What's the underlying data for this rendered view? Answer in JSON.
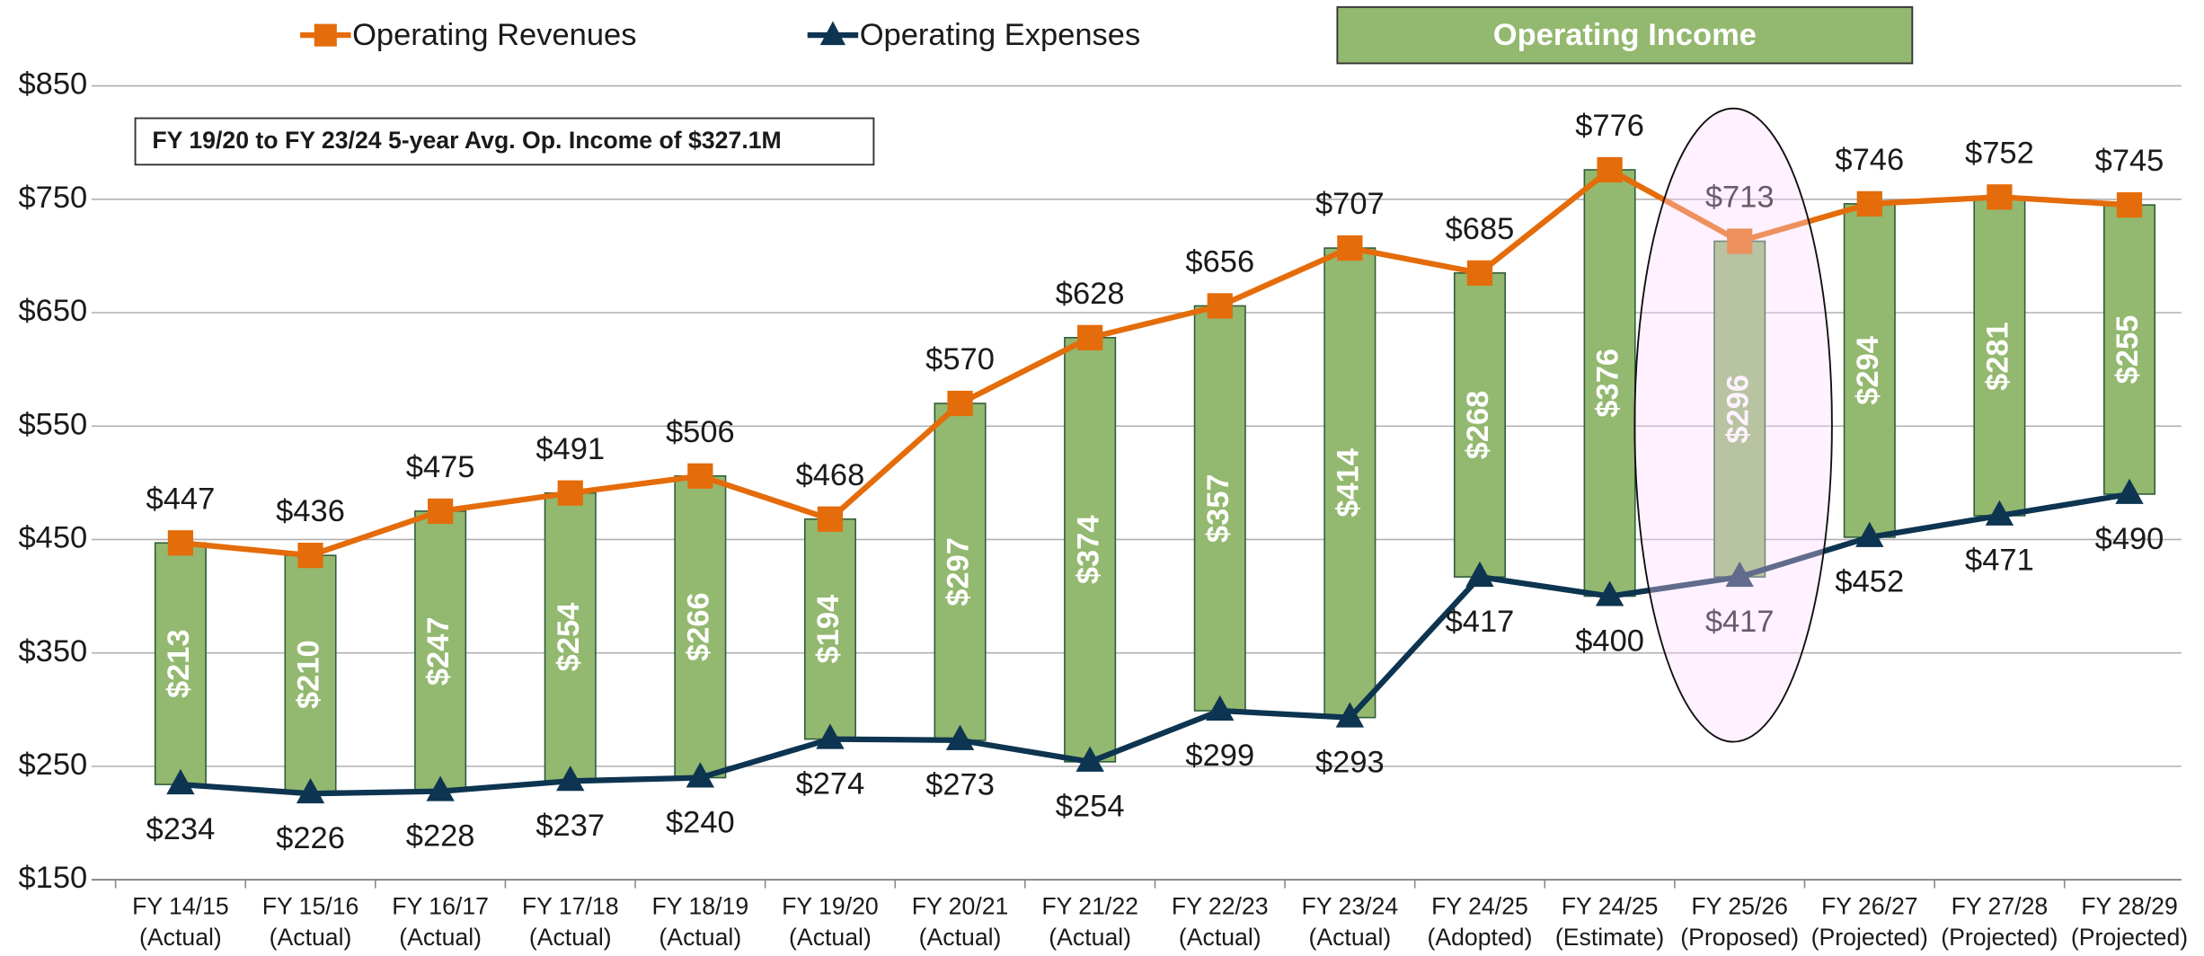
{
  "chart_data": {
    "type": "line-bar",
    "annotation": "FY 19/20 to FY 23/24  5-year Avg. Op. Income of $327.1M",
    "categories": [
      "FY 14/15",
      "FY 15/16",
      "FY 16/17",
      "FY 17/18",
      "FY 18/19",
      "FY 19/20",
      "FY 20/21",
      "FY 21/22",
      "FY 22/23",
      "FY 23/24",
      "FY 24/25",
      "FY 24/25",
      "FY 25/26",
      "FY 26/27",
      "FY 27/28",
      "FY 28/29"
    ],
    "category_status": [
      "(Actual)",
      "(Actual)",
      "(Actual)",
      "(Actual)",
      "(Actual)",
      "(Actual)",
      "(Actual)",
      "(Actual)",
      "(Actual)",
      "(Actual)",
      "(Adopted)",
      "(Estimate)",
      "(Proposed)",
      "(Projected)",
      "(Projected)",
      "(Projected)"
    ],
    "series": [
      {
        "name": "Operating Revenues",
        "color": "#e46c0a",
        "marker": "square",
        "values": [
          447,
          436,
          475,
          491,
          506,
          468,
          570,
          628,
          656,
          707,
          685,
          776,
          713,
          746,
          752,
          745
        ],
        "value_labels": [
          "$447",
          "$436",
          "$475",
          "$491",
          "$506",
          "$468",
          "$570",
          "$628",
          "$656",
          "$707",
          "$685",
          "$776",
          "$713",
          "$746",
          "$752",
          "$745"
        ]
      },
      {
        "name": "Operating Expenses",
        "color": "#0d3450",
        "marker": "triangle",
        "values": [
          234,
          226,
          228,
          237,
          240,
          274,
          273,
          254,
          299,
          293,
          417,
          400,
          417,
          452,
          471,
          490
        ],
        "value_labels": [
          "$234",
          "$226",
          "$228",
          "$237",
          "$240",
          "$274",
          "$273",
          "$254",
          "$299",
          "$293",
          "$417",
          "$400",
          "$417",
          "$452",
          "$471",
          "$490"
        ]
      },
      {
        "name": "Operating Income",
        "color": "#93b86f",
        "kind": "floating-bar",
        "values": [
          213,
          210,
          247,
          254,
          266,
          194,
          297,
          374,
          357,
          414,
          268,
          376,
          296,
          294,
          281,
          255
        ],
        "value_labels": [
          "$213",
          "$210",
          "$247",
          "$254",
          "$266",
          "$194",
          "$297",
          "$374",
          "$357",
          "$414",
          "$268",
          "$376",
          "$296",
          "$294",
          "$281",
          "$255"
        ]
      }
    ],
    "ylim": [
      150,
      850
    ],
    "yticks": [
      {
        "value": 150,
        "label": "$150"
      },
      {
        "value": 250,
        "label": "$250"
      },
      {
        "value": 350,
        "label": "$350"
      },
      {
        "value": 450,
        "label": "$450"
      },
      {
        "value": 550,
        "label": "$550"
      },
      {
        "value": 650,
        "label": "$650"
      },
      {
        "value": 750,
        "label": "$750"
      },
      {
        "value": 850,
        "label": "$850"
      }
    ],
    "grid": true,
    "legend": "top"
  }
}
